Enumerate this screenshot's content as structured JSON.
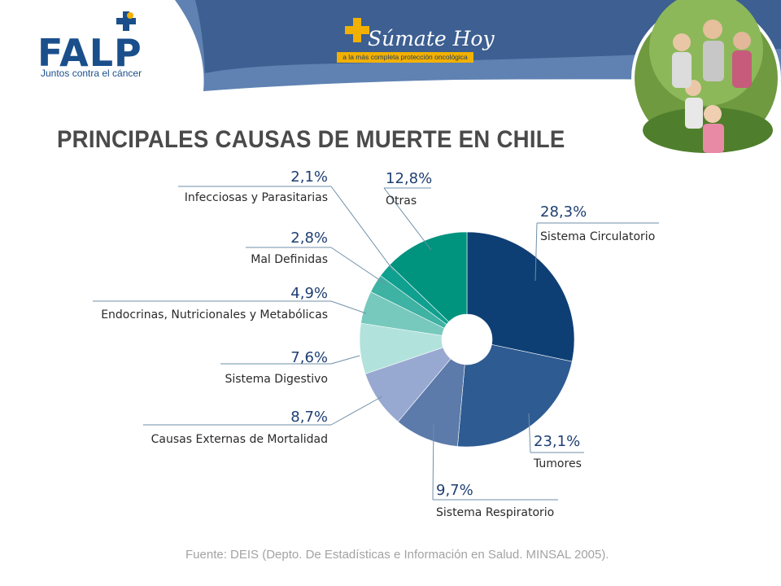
{
  "header": {
    "logo": {
      "name": "falp-logo",
      "text": "FALP",
      "tagline": "Juntos contra el cáncer"
    },
    "campaign": {
      "title": "Súmate Hoy",
      "subtitle": "a la más completa protección oncológica"
    },
    "photo": {
      "name": "family-photo",
      "description_icon": "family-photo-icon"
    },
    "colors": {
      "band": "#5f82b3",
      "band_dark": "#3d5f91",
      "accent": "#f2b000"
    }
  },
  "title": "PRINCIPALES CAUSAS DE MUERTE EN CHILE",
  "source": "Fuente: DEIS (Depto. De Estadísticas e Información en Salud. MINSAL 2005).",
  "chart_data": {
    "type": "pie",
    "donut": true,
    "slices": [
      {
        "label": "Sistema Circulatorio",
        "value": 28.3,
        "value_text": "28,3%",
        "color": "#0e3f74"
      },
      {
        "label": "Tumores",
        "value": 23.1,
        "value_text": "23,1%",
        "color": "#2e5b92"
      },
      {
        "label": "Sistema Respiratorio",
        "value": 9.7,
        "value_text": "9,7%",
        "color": "#5c7aaa"
      },
      {
        "label": "Causas Externas de Mortalidad",
        "value": 8.7,
        "value_text": "8,7%",
        "color": "#98a9d1"
      },
      {
        "label": "Sistema Digestivo",
        "value": 7.6,
        "value_text": "7,6%",
        "color": "#b2e2dc"
      },
      {
        "label": "Endocrinas, Nutricionales y Metabólicas",
        "value": 4.9,
        "value_text": "4,9%",
        "color": "#77c9bd"
      },
      {
        "label": "Mal Definidas",
        "value": 2.8,
        "value_text": "2,8%",
        "color": "#3eb2a3"
      },
      {
        "label": "Infecciosas y Parasitarias",
        "value": 2.1,
        "value_text": "2,1%",
        "color": "#10a08f"
      },
      {
        "label": "Otras",
        "value": 12.8,
        "value_text": "12,8%",
        "color": "#00937e"
      }
    ],
    "legend_position": "callouts"
  }
}
